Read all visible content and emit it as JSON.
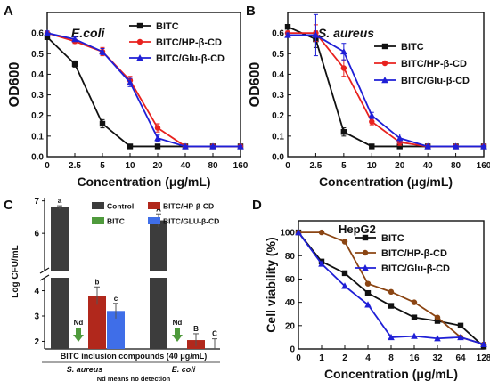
{
  "chart_data": [
    {
      "panel_label": "A",
      "type": "line",
      "title": "E.coli",
      "xlabel": "Concentration (μg/mL)",
      "ylabel": "OD600",
      "categories": [
        "0",
        "2.5",
        "5",
        "10",
        "20",
        "40",
        "80",
        "160"
      ],
      "ylim": [
        0.0,
        0.7
      ],
      "yticks": [
        "0.0",
        "0.1",
        "0.2",
        "0.3",
        "0.4",
        "0.5",
        "0.6"
      ],
      "grid": false,
      "legend": "top-right",
      "series": [
        {
          "name": "BITC",
          "color": "#111111",
          "marker": "square",
          "values": [
            0.58,
            0.45,
            0.16,
            0.05,
            0.05,
            0.05,
            0.05,
            0.05
          ],
          "errors": [
            0.01,
            0.015,
            0.02,
            0.005,
            0.005,
            0.005,
            0.005,
            0.005
          ]
        },
        {
          "name": "BITC/HP-β-CD",
          "color": "#e8221f",
          "marker": "circle",
          "values": [
            0.6,
            0.56,
            0.51,
            0.37,
            0.14,
            0.05,
            0.05,
            0.05
          ],
          "errors": [
            0.01,
            0.01,
            0.02,
            0.02,
            0.02,
            0.005,
            0.005,
            0.005
          ]
        },
        {
          "name": "BITC/Glu-β-CD",
          "color": "#1f1fd6",
          "marker": "triangle",
          "values": [
            0.6,
            0.57,
            0.51,
            0.36,
            0.09,
            0.05,
            0.05,
            0.05
          ],
          "errors": [
            0.01,
            0.01,
            0.015,
            0.02,
            0.015,
            0.005,
            0.005,
            0.005
          ]
        }
      ]
    },
    {
      "panel_label": "B",
      "type": "line",
      "title": "S. aureus",
      "xlabel": "Concentration (μg/mL)",
      "ylabel": "OD600",
      "categories": [
        "0",
        "2.5",
        "5",
        "10",
        "20",
        "40",
        "80",
        "160"
      ],
      "ylim": [
        0.0,
        0.7
      ],
      "yticks": [
        "0.0",
        "0.1",
        "0.2",
        "0.3",
        "0.4",
        "0.5",
        "0.6"
      ],
      "grid": false,
      "legend": "top-right",
      "series": [
        {
          "name": "BITC",
          "color": "#111111",
          "marker": "square",
          "values": [
            0.63,
            0.57,
            0.12,
            0.05,
            0.05,
            0.05,
            0.05,
            0.05
          ],
          "errors": [
            0.01,
            0.04,
            0.02,
            0.005,
            0.005,
            0.005,
            0.005,
            0.005
          ]
        },
        {
          "name": "BITC/HP-β-CD",
          "color": "#e8221f",
          "marker": "circle",
          "values": [
            0.6,
            0.6,
            0.43,
            0.17,
            0.07,
            0.05,
            0.05,
            0.05
          ],
          "errors": [
            0.01,
            0.04,
            0.04,
            0.015,
            0.015,
            0.005,
            0.005,
            0.005
          ]
        },
        {
          "name": "BITC/Glu-β-CD",
          "color": "#1f1fd6",
          "marker": "triangle",
          "values": [
            0.59,
            0.59,
            0.51,
            0.2,
            0.09,
            0.05,
            0.05,
            0.05
          ],
          "errors": [
            0.01,
            0.1,
            0.04,
            0.015,
            0.02,
            0.005,
            0.005,
            0.005
          ]
        }
      ]
    },
    {
      "panel_label": "C",
      "type": "bar",
      "ylabel": "Log CFU/mL",
      "xlabel": "BITC inclusion compounds (40 μg/mL)",
      "note": "Nd means no detection",
      "groups": [
        "S. aureus",
        "E. coli"
      ],
      "yticks": [
        "2",
        "3",
        "4",
        "6",
        "7"
      ],
      "axis_break": true,
      "legend": "top",
      "series": [
        {
          "name": "Control",
          "color": "#3c3c3c",
          "values": [
            6.8,
            6.4
          ],
          "errors": [
            0.05,
            0.2
          ],
          "letters": [
            "a",
            "A"
          ]
        },
        {
          "name": "BITC",
          "color": "#4f9a3c",
          "values": [
            null,
            null
          ],
          "errors": [
            null,
            null
          ],
          "letters": [
            "Nd",
            "Nd"
          ]
        },
        {
          "name": "BITC/HP-β-CD",
          "color": "#b1281c",
          "values": [
            3.8,
            2.05
          ],
          "errors": [
            0.35,
            0.25
          ],
          "letters": [
            "b",
            "B"
          ]
        },
        {
          "name": "BITC/GLU-β-CD",
          "color": "#3f6ee8",
          "values": [
            3.2,
            1.55
          ],
          "errors": [
            0.3,
            0.55
          ],
          "letters": [
            "c",
            "C"
          ]
        }
      ]
    },
    {
      "panel_label": "D",
      "type": "line",
      "title": "HepG2",
      "xlabel": "Concentration (μg/mL)",
      "ylabel": "Cell viability (%)",
      "categories": [
        "0",
        "1",
        "2",
        "4",
        "8",
        "16",
        "32",
        "64",
        "128"
      ],
      "ylim": [
        0,
        110
      ],
      "yticks": [
        "0",
        "20",
        "40",
        "60",
        "80",
        "100"
      ],
      "grid": false,
      "legend": "top-right",
      "series": [
        {
          "name": "BITC",
          "color": "#111111",
          "marker": "square",
          "values": [
            100,
            75,
            65,
            48,
            37,
            27,
            24,
            20,
            2
          ]
        },
        {
          "name": "BITC/HP-β-CD",
          "color": "#8b4513",
          "marker": "circle",
          "values": [
            100,
            100,
            92,
            56,
            49,
            40,
            27,
            10,
            4
          ]
        },
        {
          "name": "BITC/Glu-β-CD",
          "color": "#1f1fd6",
          "marker": "triangle",
          "values": [
            100,
            73,
            54,
            38,
            10,
            11,
            9,
            10,
            4
          ]
        }
      ]
    }
  ]
}
